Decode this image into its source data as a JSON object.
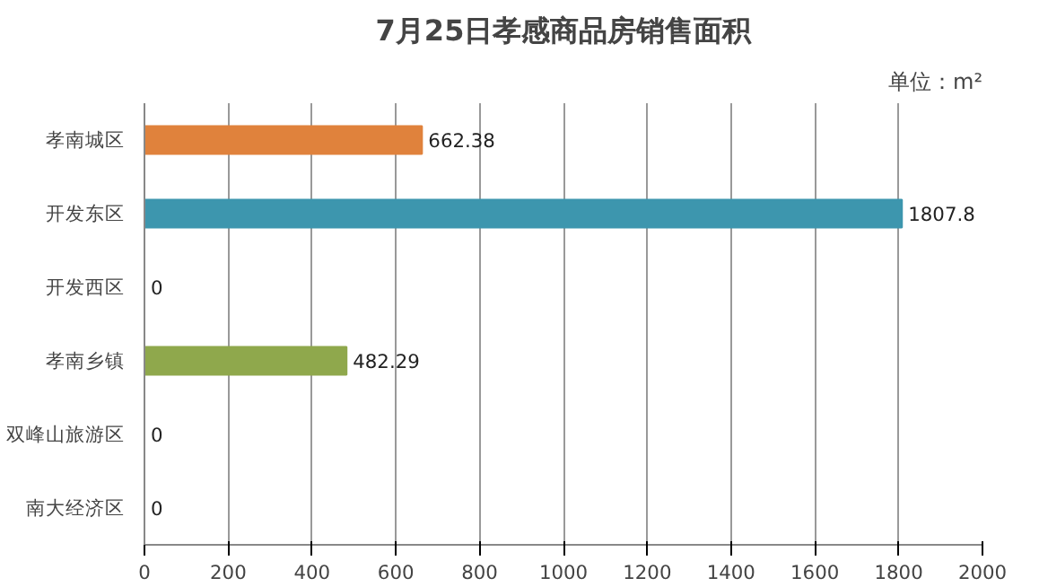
{
  "chart_data": {
    "type": "bar",
    "orientation": "horizontal",
    "title": "7月25日孝感商品房销售面积",
    "annotations": [
      "单位：m²"
    ],
    "categories": [
      "孝南城区",
      "开发东区",
      "开发西区",
      "孝南乡镇",
      "双峰山旅游区",
      "南大经济区"
    ],
    "values": [
      662.38,
      1807.8,
      0,
      482.29,
      0,
      0
    ],
    "colors": [
      "#e0823c",
      "#3d96ae",
      "#3d96ae",
      "#8fa84c",
      "#8fa84c",
      "#8fa84c"
    ],
    "xlim": [
      0,
      2000
    ],
    "xticks": [
      0,
      200,
      400,
      600,
      800,
      1000,
      1200,
      1400,
      1600,
      1800,
      2000
    ],
    "grid": "x",
    "data_labels": true
  }
}
